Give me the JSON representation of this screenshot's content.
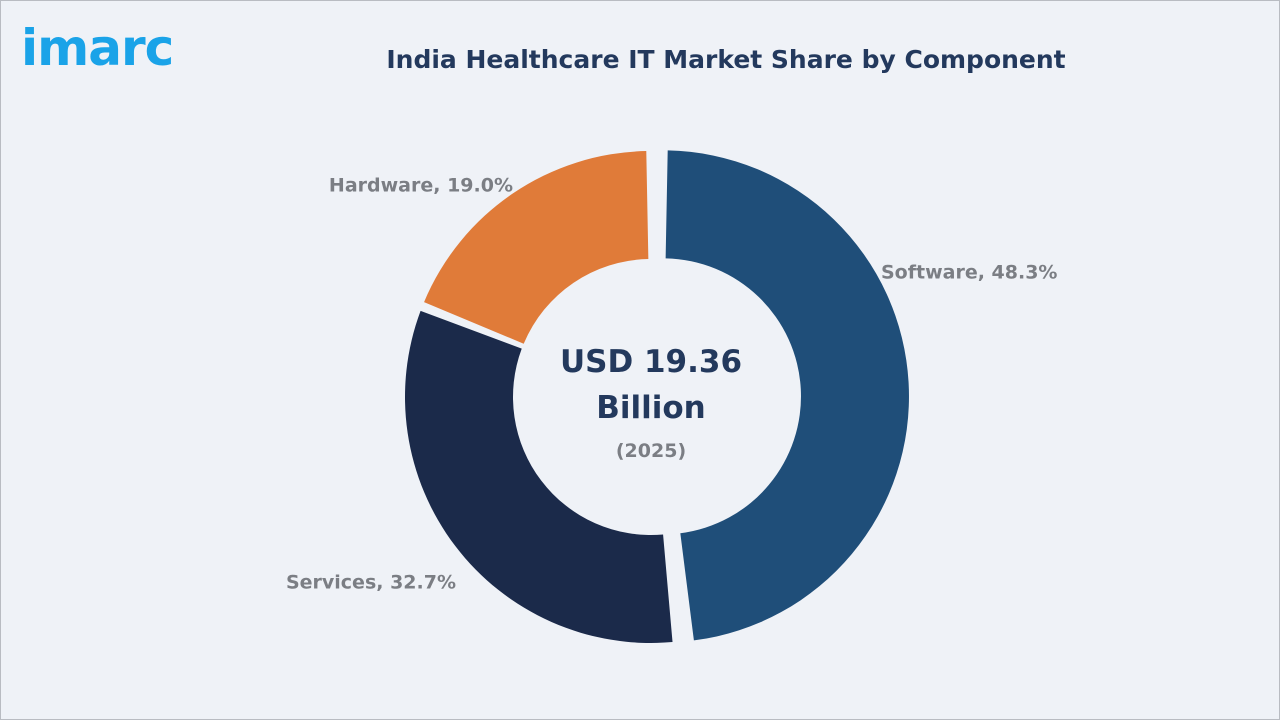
{
  "brand": {
    "logo_text": "imarc",
    "logo_color": "#1aa3e8"
  },
  "chart_data": {
    "type": "pie",
    "title": "India Healthcare IT Market Share by Component",
    "categories": [
      "Software",
      "Services",
      "Hardware"
    ],
    "values": [
      48.3,
      32.7,
      19.0
    ],
    "unit": "%",
    "labels": [
      "Software, 48.3%",
      "Services, 32.7%",
      "Hardware, 19.0%"
    ],
    "colors": [
      "#1f4e79",
      "#1b2a4a",
      "#e07b39"
    ],
    "exploded": [
      "Software"
    ],
    "donut": true,
    "center_value": "USD 19.36",
    "center_unit": "Billion",
    "center_year": "(2025)"
  }
}
